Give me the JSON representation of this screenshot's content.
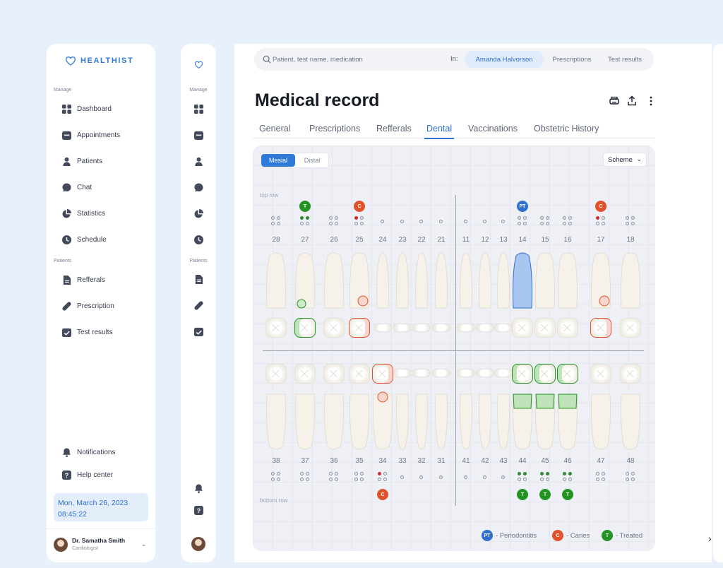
{
  "brand": {
    "name": "HEALTHIST"
  },
  "sidebar": {
    "manage_label": "Manage",
    "patients_label": "Patients",
    "manage_items": [
      {
        "label": "Dashboard",
        "icon": "grid-icon"
      },
      {
        "label": "Appointments",
        "icon": "calendar-icon"
      },
      {
        "label": "Patients",
        "icon": "user-icon"
      },
      {
        "label": "Chat",
        "icon": "chat-icon"
      },
      {
        "label": "Statistics",
        "icon": "pie-chart-icon"
      },
      {
        "label": "Schedule",
        "icon": "clock-icon"
      }
    ],
    "patient_items": [
      {
        "label": "Refferals",
        "icon": "document-icon"
      },
      {
        "label": "Prescription",
        "icon": "pill-icon"
      },
      {
        "label": "Test results",
        "icon": "checklist-icon"
      }
    ],
    "footer_items": [
      {
        "label": "Notifications",
        "icon": "bell-icon"
      },
      {
        "label": "Help center",
        "icon": "question-icon"
      }
    ],
    "date": "Mon, March 26, 2023",
    "time": "08:45:22",
    "user": {
      "name": "Dr. Samatha Smith",
      "role": "Cardiologist"
    }
  },
  "search": {
    "placeholder": "Patient, test name, medication",
    "in_label": "In:",
    "chips": [
      "Amanda Halvorson",
      "Prescriptions",
      "Test results"
    ]
  },
  "page_title": "Medical record",
  "tabs": [
    "General",
    "Prescriptions",
    "Refferals",
    "Dental",
    "Vaccinations",
    "Obstetric History"
  ],
  "active_tab": "Dental",
  "chart": {
    "view_toggle": [
      "Mesial",
      "Distal"
    ],
    "active_view": "Mesial",
    "scheme_label": "Scheme",
    "top_row_label": "top row",
    "bottom_row_label": "bottom row",
    "top_teeth": [
      "28",
      "27",
      "26",
      "25",
      "24",
      "23",
      "22",
      "21",
      "11",
      "12",
      "13",
      "14",
      "15",
      "16",
      "17",
      "18"
    ],
    "bottom_teeth": [
      "38",
      "37",
      "36",
      "35",
      "34",
      "33",
      "32",
      "31",
      "41",
      "42",
      "43",
      "44",
      "45",
      "46",
      "47",
      "48"
    ],
    "top_badges": {
      "27": "T",
      "25": "C",
      "14": "PT",
      "17": "C"
    },
    "bottom_badges": {
      "34": "C",
      "44": "T",
      "45": "T",
      "46": "T"
    },
    "legend": [
      {
        "code": "PT",
        "label": "- Periodontitis"
      },
      {
        "code": "C",
        "label": "- Caries"
      },
      {
        "code": "T",
        "label": "- Treated"
      }
    ],
    "colors": {
      "treated": "#239323",
      "caries": "#e0522c",
      "periodontitis": "#2f6fcd"
    }
  }
}
